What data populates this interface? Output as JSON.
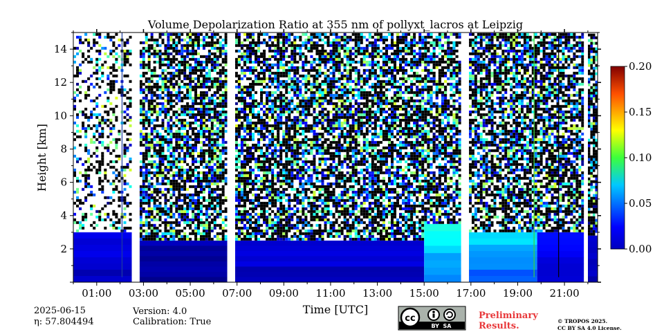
{
  "chart_data": {
    "type": "heatmap",
    "title": "Volume Depolarization Ratio at 355 nm of pollyxt_lacros at Leipzig",
    "xlabel": "Time [UTC]",
    "ylabel": "Height [km]",
    "xlim": [
      "00:00",
      "22:25"
    ],
    "ylim": [
      0,
      15
    ],
    "x_ticks": [
      "01:00",
      "03:00",
      "05:00",
      "07:00",
      "09:00",
      "11:00",
      "13:00",
      "15:00",
      "17:00",
      "19:00",
      "21:00"
    ],
    "y_ticks": [
      "2",
      "4",
      "6",
      "8",
      "10",
      "12",
      "14"
    ],
    "colorbar": {
      "min": 0.0,
      "max": 0.2,
      "ticks": [
        "0.00",
        "0.05",
        "0.10",
        "0.15",
        "0.20"
      ],
      "colormap": "jet"
    },
    "data_gaps_utc": [
      [
        "02:30",
        "02:50"
      ],
      [
        "06:35",
        "06:55"
      ],
      [
        "16:35",
        "16:55"
      ],
      [
        "21:50",
        "22:00"
      ]
    ],
    "regions": [
      {
        "start": "00:00",
        "end": "02:30",
        "base_value": 0.02,
        "layer_top_km": 3.0
      },
      {
        "start": "02:50",
        "end": "06:35",
        "base_value": 0.01,
        "layer_top_km": 2.5
      },
      {
        "start": "06:55",
        "end": "15:00",
        "base_value": 0.02,
        "layer_top_km": 2.5
      },
      {
        "start": "15:00",
        "end": "16:35",
        "base_value": 0.08,
        "layer_top_km": 3.5
      },
      {
        "start": "16:55",
        "end": "19:50",
        "base_value": 0.07,
        "layer_top_km": 3.0
      },
      {
        "start": "19:50",
        "end": "21:50",
        "base_value": 0.03,
        "layer_top_km": 3.0
      },
      {
        "start": "22:00",
        "end": "22:25",
        "base_value": 0.02,
        "layer_top_km": 2.8
      }
    ],
    "vertical_lines": [
      {
        "time": "02:05",
        "color": "#1f3fa0"
      },
      {
        "time": "19:42",
        "color": "#3ad13a"
      },
      {
        "time": "20:45",
        "color": "#000000"
      }
    ]
  },
  "footer": {
    "date": "2025-06-15",
    "eta": "η: 57.804494",
    "version": "Version: 4.0",
    "calibration": "Calibration: True",
    "preliminary": "Preliminary Results.",
    "cc_label": "BY  SA",
    "copyright": "© TROPOS 2025.",
    "license": "CC BY SA 4.0 License."
  },
  "colors": {
    "preliminary": "#e8383a",
    "cc_badge_bg": "#aab2ab"
  }
}
